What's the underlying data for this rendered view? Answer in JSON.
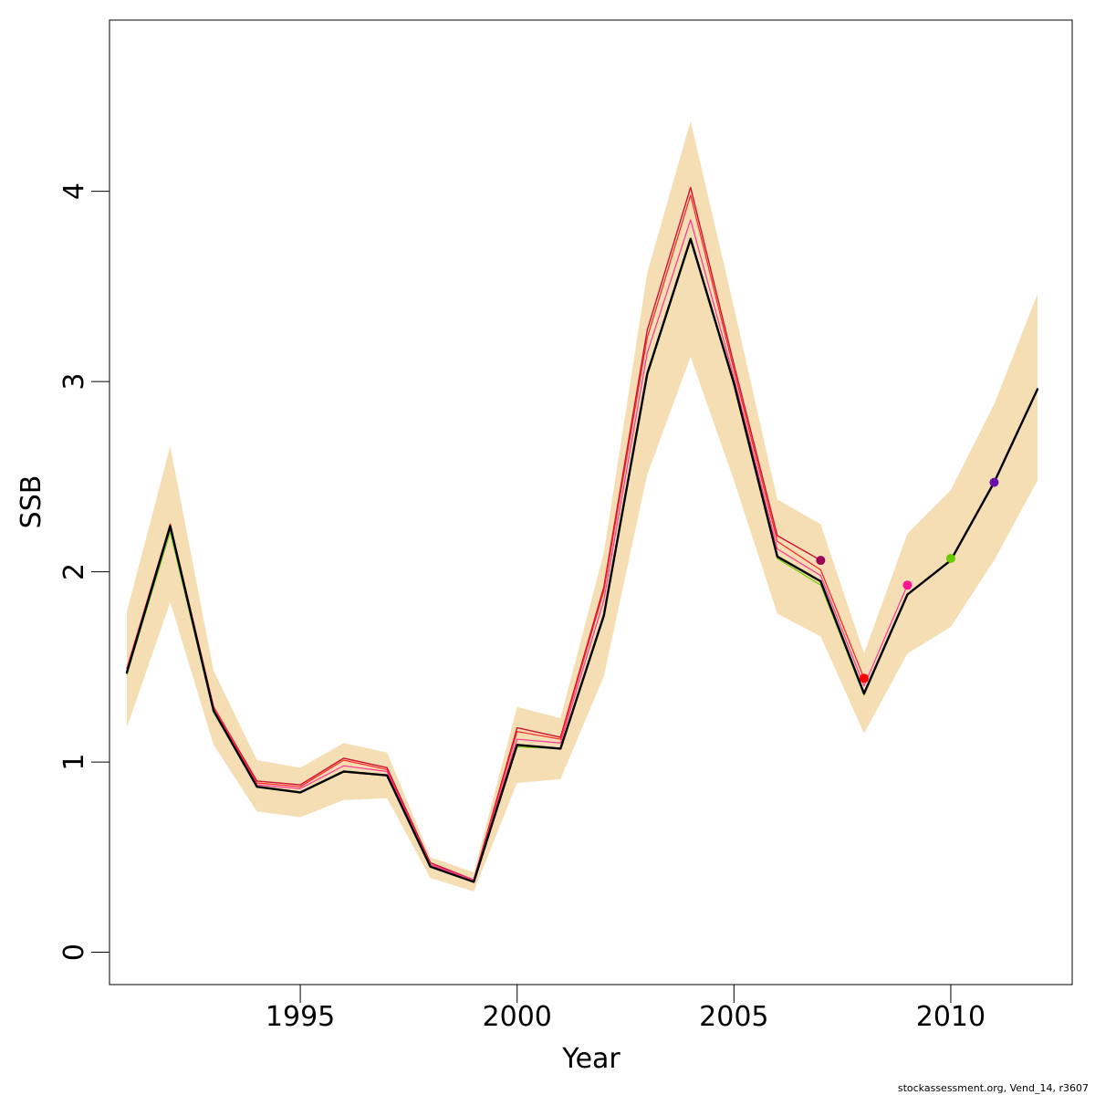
{
  "chart_data": {
    "type": "line",
    "xlabel": "Year",
    "ylabel": "SSB",
    "xlim": [
      1990.6,
      2012.8
    ],
    "ylim": [
      -0.17,
      4.9
    ],
    "x_ticks": [
      1995,
      2000,
      2005,
      2010
    ],
    "x_tick_labels": [
      "1995",
      "2000",
      "2005",
      "2010"
    ],
    "y_ticks": [
      0,
      1,
      2,
      3,
      4
    ],
    "y_tick_labels": [
      "0",
      "1",
      "2",
      "3",
      "4"
    ],
    "grid": false,
    "legend": "none",
    "confidence_band": {
      "color": "#f5deb3",
      "x": [
        1991,
        1992,
        1993,
        1994,
        1995,
        1996,
        1997,
        1998,
        1999,
        2000,
        2001,
        2002,
        2003,
        2004,
        2005,
        2006,
        2007,
        2008,
        2009,
        2010,
        2011,
        2012
      ],
      "lower": [
        1.18,
        1.84,
        1.09,
        0.74,
        0.71,
        0.8,
        0.81,
        0.39,
        0.32,
        0.89,
        0.91,
        1.45,
        2.51,
        3.13,
        2.48,
        1.78,
        1.66,
        1.15,
        1.57,
        1.71,
        2.06,
        2.48
      ],
      "upper": [
        1.79,
        2.66,
        1.48,
        1.01,
        0.97,
        1.1,
        1.05,
        0.5,
        0.42,
        1.29,
        1.23,
        2.1,
        3.57,
        4.37,
        3.39,
        2.38,
        2.25,
        1.57,
        2.2,
        2.43,
        2.88,
        3.46
      ]
    },
    "series": [
      {
        "color": "#cc1133",
        "width": 1.4,
        "x": [
          1991,
          1992,
          1993,
          1994,
          1995,
          1996,
          1997,
          1998,
          1999,
          2000,
          2001,
          2002,
          2003,
          2004,
          2005,
          2006,
          2007
        ],
        "values": [
          1.49,
          2.25,
          1.29,
          0.9,
          0.88,
          1.02,
          0.97,
          0.47,
          0.38,
          1.18,
          1.13,
          1.92,
          3.27,
          4.02,
          3.09,
          2.19,
          2.06
        ]
      },
      {
        "color": "#ff2222",
        "width": 1.2,
        "x": [
          1991,
          1992,
          1993,
          1994,
          1995,
          1996,
          1997,
          1998,
          1999,
          2000,
          2001,
          2002,
          2003,
          2004,
          2005,
          2006,
          2007,
          2008
        ],
        "values": [
          1.49,
          2.25,
          1.29,
          0.89,
          0.87,
          1.01,
          0.96,
          0.46,
          0.38,
          1.16,
          1.12,
          1.9,
          3.23,
          3.98,
          3.06,
          2.16,
          2.01,
          1.44
        ]
      },
      {
        "color": "#ff3399",
        "width": 1.2,
        "x": [
          1991,
          1992,
          1993,
          1994,
          1995,
          1996,
          1997,
          1998,
          1999,
          2000,
          2001,
          2002,
          2003,
          2004,
          2005,
          2006,
          2007,
          2008,
          2009
        ],
        "values": [
          1.48,
          2.23,
          1.28,
          0.88,
          0.86,
          0.98,
          0.95,
          0.46,
          0.38,
          1.12,
          1.1,
          1.85,
          3.15,
          3.85,
          3.02,
          2.12,
          1.98,
          1.4,
          1.93
        ]
      },
      {
        "color": "#66cc00",
        "width": 1.2,
        "x": [
          1991,
          1992,
          1993,
          1994,
          1995,
          1996,
          1997,
          1998,
          1999,
          2000,
          2001,
          2002,
          2003,
          2004,
          2005,
          2006,
          2007,
          2008,
          2009,
          2010
        ],
        "values": [
          1.46,
          2.21,
          1.26,
          0.87,
          0.84,
          0.95,
          0.93,
          0.45,
          0.37,
          1.08,
          1.07,
          1.76,
          3.03,
          3.74,
          2.98,
          2.07,
          1.93,
          1.35,
          1.88,
          2.06
        ]
      },
      {
        "color": "#000000",
        "width": 2.4,
        "x": [
          1991,
          1992,
          1993,
          1994,
          1995,
          1996,
          1997,
          1998,
          1999,
          2000,
          2001,
          2002,
          2003,
          2004,
          2005,
          2006,
          2007,
          2008,
          2009,
          2010,
          2011,
          2012
        ],
        "values": [
          1.47,
          2.24,
          1.27,
          0.87,
          0.84,
          0.95,
          0.93,
          0.45,
          0.37,
          1.09,
          1.07,
          1.77,
          3.04,
          3.75,
          2.99,
          2.08,
          1.95,
          1.36,
          1.88,
          2.06,
          2.47,
          2.96
        ]
      }
    ],
    "points": [
      {
        "x": 2007,
        "y": 2.06,
        "color": "#990055"
      },
      {
        "x": 2008,
        "y": 1.44,
        "color": "#ff0000"
      },
      {
        "x": 2009,
        "y": 1.93,
        "color": "#ff1493"
      },
      {
        "x": 2010,
        "y": 2.07,
        "color": "#66cc00"
      },
      {
        "x": 2011,
        "y": 2.47,
        "color": "#6a0dad"
      }
    ]
  },
  "footer": {
    "note": "stockassessment.org, Vend_14, r3607"
  }
}
